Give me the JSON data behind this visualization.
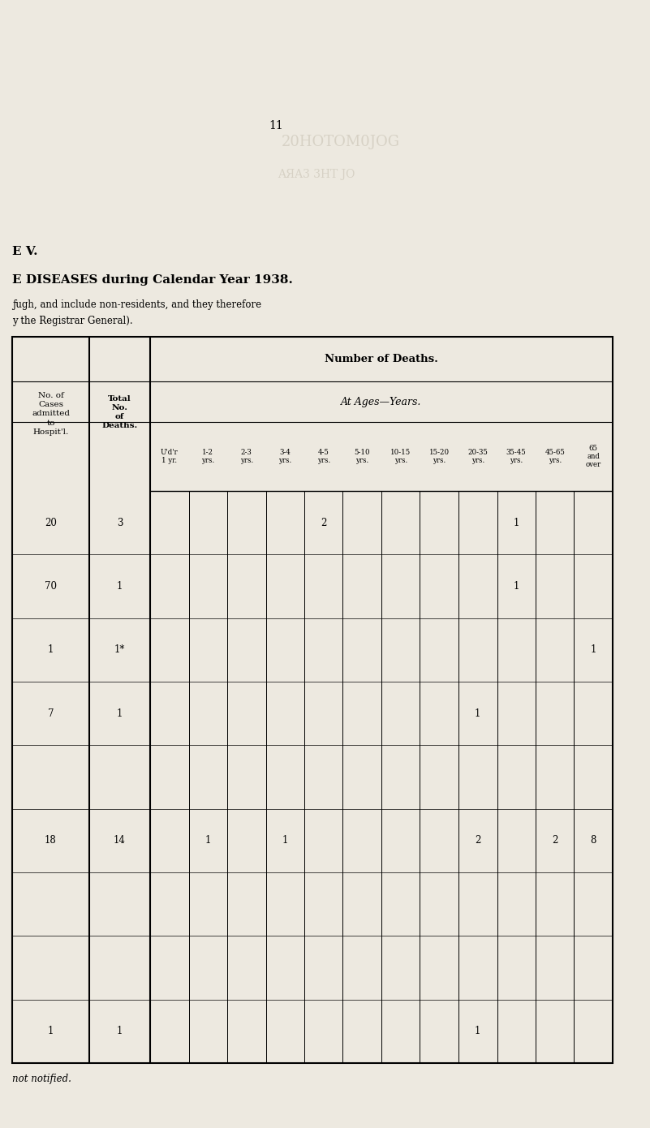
{
  "page_number": "11",
  "bg_color": "#ede9e0",
  "watermark1": "20HOTOM0JOG",
  "watermark2": "AЯA3 3HT JO",
  "ev_label": "E V.",
  "main_title": "E DISEASES during Calendar Year 1938.",
  "sub1": "ƒugh, and include non-residents, and they therefore",
  "sub2": "y the Registrar General).",
  "footer": "not notified.",
  "table_header": "Number of Deaths.",
  "ages_header": "At Ages—Years.",
  "col0_header": "No. of\nCases\nadmitted\nto\nHospit'l.",
  "col1_header": "Total\nNo.\nof\nDeaths.",
  "age_labels": [
    "U'd'r\n1 yr.",
    "1-2\nyrs.",
    "2-3\nyrs.",
    "3-4\nyrs.",
    "4-5\nyrs.",
    "5-10\nyrs.",
    "10-15\nyrs.",
    "15-20\nyrs.",
    "20-35\nyrs.",
    "35-45\nyrs.",
    "45-65\nyrs.",
    "65\nand\nover"
  ],
  "rows": [
    {
      "cases": "20",
      "deaths": "3",
      "vals": [
        "",
        "",
        "",
        "",
        "2",
        "",
        "",
        "",
        "",
        "1",
        "",
        ""
      ]
    },
    {
      "cases": "70",
      "deaths": "1",
      "vals": [
        "",
        "",
        "",
        "",
        "",
        "",
        "",
        "",
        "",
        "1",
        "",
        ""
      ]
    },
    {
      "cases": "1",
      "deaths": "1*",
      "vals": [
        "",
        "",
        "",
        "",
        "",
        "",
        "",
        "",
        "",
        "",
        "",
        "1"
      ]
    },
    {
      "cases": "7",
      "deaths": "1",
      "vals": [
        "",
        "",
        "",
        "",
        "",
        "",
        "",
        "",
        "1",
        "",
        "",
        ""
      ]
    },
    {
      "cases": "",
      "deaths": "",
      "vals": [
        "",
        "",
        "",
        "",
        "",
        "",
        "",
        "",
        "",
        "",
        "",
        ""
      ]
    },
    {
      "cases": "18",
      "deaths": "14",
      "vals": [
        "",
        "1",
        "",
        "1",
        "",
        "",
        "",
        "",
        "2",
        "",
        "2",
        "8"
      ]
    },
    {
      "cases": "",
      "deaths": "",
      "vals": [
        "",
        "",
        "",
        "",
        "",
        "",
        "",
        "",
        "",
        "",
        "",
        ""
      ]
    },
    {
      "cases": "",
      "deaths": "",
      "vals": [
        "",
        "",
        "",
        "",
        "",
        "",
        "",
        "",
        "",
        "",
        "",
        ""
      ]
    },
    {
      "cases": "1",
      "deaths": "1",
      "vals": [
        "",
        "",
        "",
        "",
        "",
        "",
        "",
        "",
        "1",
        "",
        "",
        ""
      ]
    }
  ]
}
